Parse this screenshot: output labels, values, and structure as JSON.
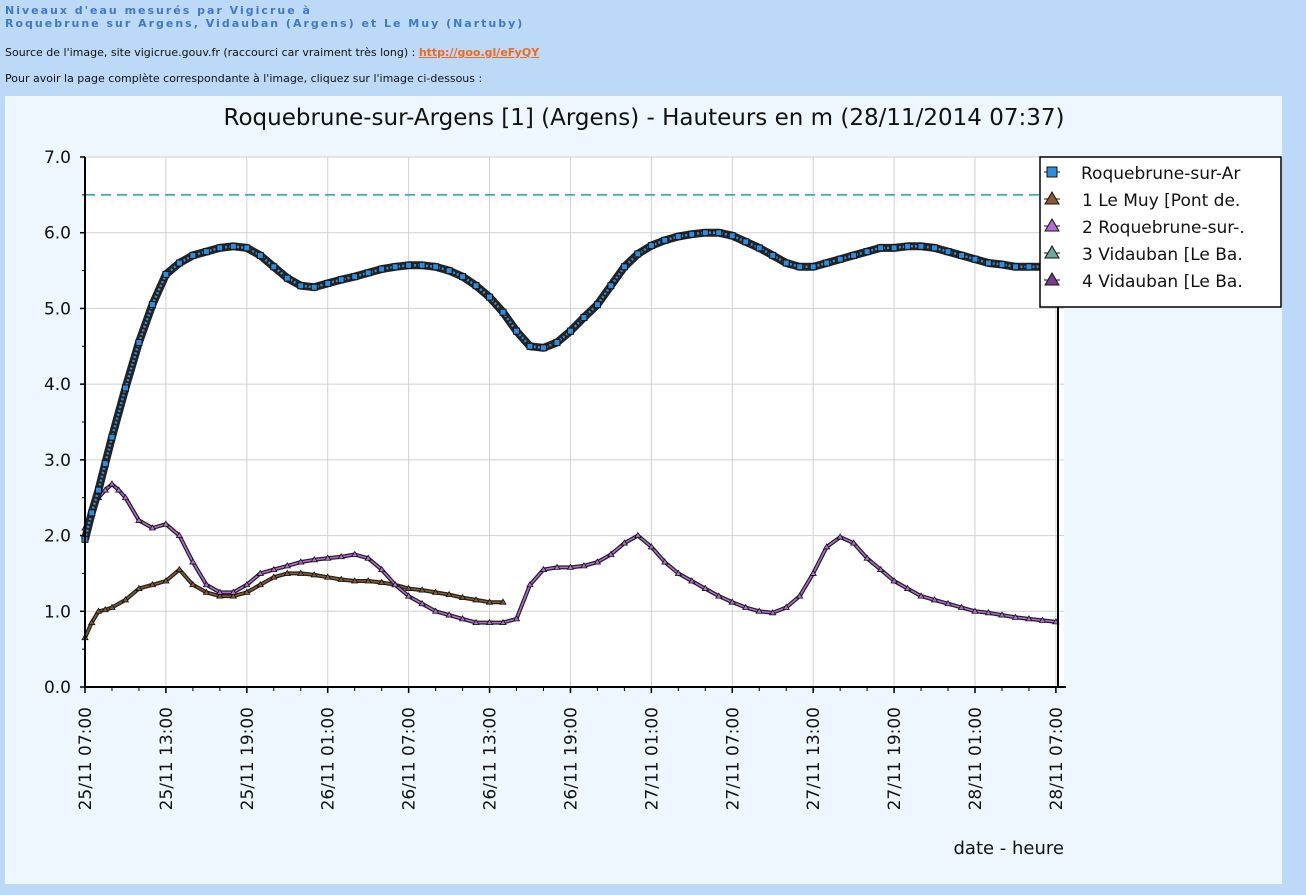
{
  "header": {
    "line1": "Niveaux d'eau mesurés par Vigicrue à",
    "line2": "Roquebrune sur Argens, Vidauban (Argens) et Le Muy (Nartuby)",
    "source_prefix": "Source de l'image, site vigicrue.gouv.fr (raccourci car vraiment très long) : ",
    "source_link": "http://goo.gl/eFyQY",
    "click_text": "Pour avoir la page complète correspondante à l'image, cliquez sur l'image ci-dessous :"
  },
  "colors": {
    "series_main": "#2e8ede",
    "series_1": "#8a5a2c",
    "series_2": "#b86ad8",
    "series_3": "#6aa8a0",
    "series_4": "#7a3c8c",
    "threshold": "#1aa0c0"
  },
  "chart_data": {
    "type": "line",
    "title": "Roquebrune-sur-Argens [1] (Argens) - Hauteurs en m (28/11/2014 07:37)",
    "xlabel": "date - heure",
    "ylabel": "",
    "ylim": [
      0,
      7
    ],
    "xlim": [
      0,
      72.6
    ],
    "x_unit": "hours since 25/11 07:00",
    "yticks": [
      "0.0",
      "1.0",
      "2.0",
      "3.0",
      "4.0",
      "5.0",
      "6.0",
      "7.0"
    ],
    "xticks": [
      "25/11 07:00",
      "25/11 13:00",
      "25/11 19:00",
      "26/11 01:00",
      "26/11 07:00",
      "26/11 13:00",
      "26/11 19:00",
      "27/11 01:00",
      "27/11 07:00",
      "27/11 13:00",
      "27/11 19:00",
      "28/11 01:00",
      "28/11 07:00"
    ],
    "threshold": 6.5,
    "grid": true,
    "legend_position": "top-right",
    "series": [
      {
        "name": "Roquebrune-sur-Ar",
        "x": [
          0,
          0.5,
          1,
          1.5,
          2,
          3,
          4,
          5,
          6,
          7,
          8,
          9,
          10,
          11,
          12,
          13,
          14,
          15,
          16,
          17,
          18,
          19,
          20,
          21,
          22,
          23,
          24,
          25,
          26,
          27,
          28,
          29,
          30,
          31,
          32,
          33,
          34,
          35,
          36,
          37,
          38,
          39,
          40,
          41,
          42,
          43,
          44,
          45,
          46,
          47,
          48,
          49,
          50,
          51,
          52,
          53,
          54,
          55,
          56,
          57,
          58,
          59,
          60,
          61,
          62,
          63,
          64,
          65,
          66,
          67,
          68,
          69,
          70,
          71,
          72.2
        ],
        "y": [
          1.95,
          2.3,
          2.6,
          2.95,
          3.3,
          3.95,
          4.55,
          5.05,
          5.45,
          5.6,
          5.7,
          5.75,
          5.8,
          5.82,
          5.8,
          5.7,
          5.55,
          5.4,
          5.3,
          5.28,
          5.33,
          5.38,
          5.42,
          5.47,
          5.52,
          5.55,
          5.57,
          5.57,
          5.55,
          5.5,
          5.42,
          5.3,
          5.15,
          4.95,
          4.7,
          4.5,
          4.48,
          4.55,
          4.7,
          4.88,
          5.05,
          5.3,
          5.55,
          5.72,
          5.83,
          5.9,
          5.95,
          5.98,
          6.0,
          6.0,
          5.96,
          5.88,
          5.8,
          5.7,
          5.6,
          5.55,
          5.55,
          5.6,
          5.65,
          5.7,
          5.75,
          5.8,
          5.8,
          5.82,
          5.82,
          5.8,
          5.75,
          5.7,
          5.65,
          5.6,
          5.58,
          5.55,
          5.55,
          5.55,
          5.5
        ]
      },
      {
        "name": "1 Le Muy [Pont de.",
        "x": [
          0,
          0.5,
          1,
          1.5,
          2,
          3,
          4,
          5,
          6,
          7,
          8,
          9,
          10,
          11,
          12,
          13,
          14,
          15,
          16,
          17,
          18,
          19,
          20,
          21,
          22,
          23,
          24,
          25,
          26,
          27,
          28,
          29,
          30,
          31
        ],
        "y": [
          0.65,
          0.85,
          1.0,
          1.02,
          1.05,
          1.15,
          1.3,
          1.35,
          1.4,
          1.55,
          1.35,
          1.25,
          1.2,
          1.2,
          1.25,
          1.35,
          1.45,
          1.5,
          1.5,
          1.48,
          1.45,
          1.42,
          1.4,
          1.4,
          1.38,
          1.35,
          1.3,
          1.28,
          1.25,
          1.22,
          1.18,
          1.15,
          1.12,
          1.12
        ]
      },
      {
        "name": "2 Roquebrune-sur-.",
        "x": [
          0,
          0.5,
          1,
          1.5,
          2,
          2.5,
          3,
          4,
          5,
          6,
          7,
          8,
          9,
          10,
          11,
          12,
          13,
          14,
          15,
          16,
          17,
          18,
          19,
          20,
          21,
          22,
          23,
          24,
          25,
          26,
          27,
          28,
          29,
          30,
          31,
          32,
          33,
          34,
          35,
          36,
          37,
          38,
          39,
          40,
          41,
          42,
          43,
          44,
          45,
          46,
          47,
          48,
          49,
          50,
          51,
          52,
          53,
          54,
          55,
          56,
          57,
          58,
          59,
          60,
          61,
          62,
          63,
          64,
          65,
          66,
          67,
          68,
          69,
          70,
          71,
          72
        ],
        "y": [
          2.1,
          2.35,
          2.5,
          2.6,
          2.68,
          2.6,
          2.5,
          2.2,
          2.1,
          2.15,
          2.0,
          1.65,
          1.35,
          1.25,
          1.25,
          1.35,
          1.5,
          1.55,
          1.6,
          1.65,
          1.68,
          1.7,
          1.72,
          1.75,
          1.7,
          1.55,
          1.35,
          1.2,
          1.1,
          1.0,
          0.95,
          0.9,
          0.85,
          0.85,
          0.85,
          0.9,
          1.35,
          1.55,
          1.58,
          1.58,
          1.6,
          1.65,
          1.75,
          1.9,
          2.0,
          1.85,
          1.65,
          1.5,
          1.4,
          1.3,
          1.2,
          1.12,
          1.05,
          1.0,
          0.98,
          1.05,
          1.2,
          1.5,
          1.85,
          1.98,
          1.9,
          1.7,
          1.55,
          1.4,
          1.3,
          1.2,
          1.15,
          1.1,
          1.05,
          1.0,
          0.98,
          0.95,
          0.92,
          0.9,
          0.88,
          0.86
        ]
      },
      {
        "name": "3 Vidauban [Le Ba.",
        "x": [],
        "y": []
      },
      {
        "name": "4 Vidauban [Le Ba.",
        "x": [],
        "y": []
      }
    ]
  }
}
